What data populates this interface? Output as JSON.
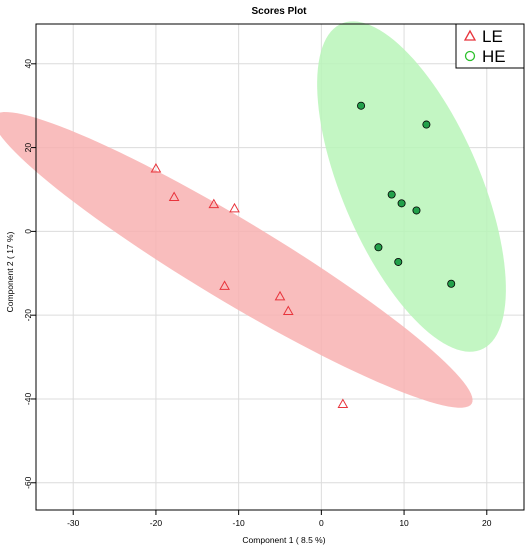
{
  "chart_data": {
    "type": "scatter",
    "title": "Scores Plot",
    "xlabel": "Component 1 ( 8.5 %)",
    "ylabel": "Component 2 ( 17 %)",
    "xlim": [
      -34.5,
      24.5
    ],
    "ylim": [
      -66.5,
      49.5
    ],
    "xticks": [
      -30,
      -20,
      -10,
      0,
      10,
      20
    ],
    "yticks": [
      40,
      20,
      0,
      -20,
      -40,
      -60
    ],
    "grid": true,
    "legend_position": "top-right",
    "series": [
      {
        "name": "LE",
        "marker": "triangle-open",
        "color": "#e8343c",
        "ellipse_color": "#f8b2b2",
        "points": [
          {
            "x": -20.0,
            "y": 15.0
          },
          {
            "x": -17.8,
            "y": 8.2
          },
          {
            "x": -13.0,
            "y": 6.5
          },
          {
            "x": -10.5,
            "y": 5.5
          },
          {
            "x": -11.7,
            "y": -13.0
          },
          {
            "x": -5.0,
            "y": -15.5
          },
          {
            "x": -4.0,
            "y": -19.0
          },
          {
            "x": 2.6,
            "y": -41.2
          }
        ],
        "ellipse": {
          "cx": -10.7,
          "cy": -6.8,
          "a": 45.1,
          "b": 7.2,
          "angle_deg": -50.9
        }
      },
      {
        "name": "HE",
        "marker": "circle-filled",
        "color": "#22aa22",
        "fill": "#22a04a",
        "ellipse_color": "#b9f5b9",
        "points": [
          {
            "x": 4.8,
            "y": 30.0
          },
          {
            "x": 12.7,
            "y": 25.5
          },
          {
            "x": 8.5,
            "y": 8.8
          },
          {
            "x": 9.7,
            "y": 6.7
          },
          {
            "x": 11.5,
            "y": 5.0
          },
          {
            "x": 6.9,
            "y": -3.8
          },
          {
            "x": 9.3,
            "y": -7.3
          },
          {
            "x": 15.7,
            "y": -12.5
          }
        ],
        "ellipse": {
          "cx": 10.9,
          "cy": 10.7,
          "a": 40.1,
          "b": 8.8,
          "angle_deg": -79.3
        }
      }
    ]
  }
}
